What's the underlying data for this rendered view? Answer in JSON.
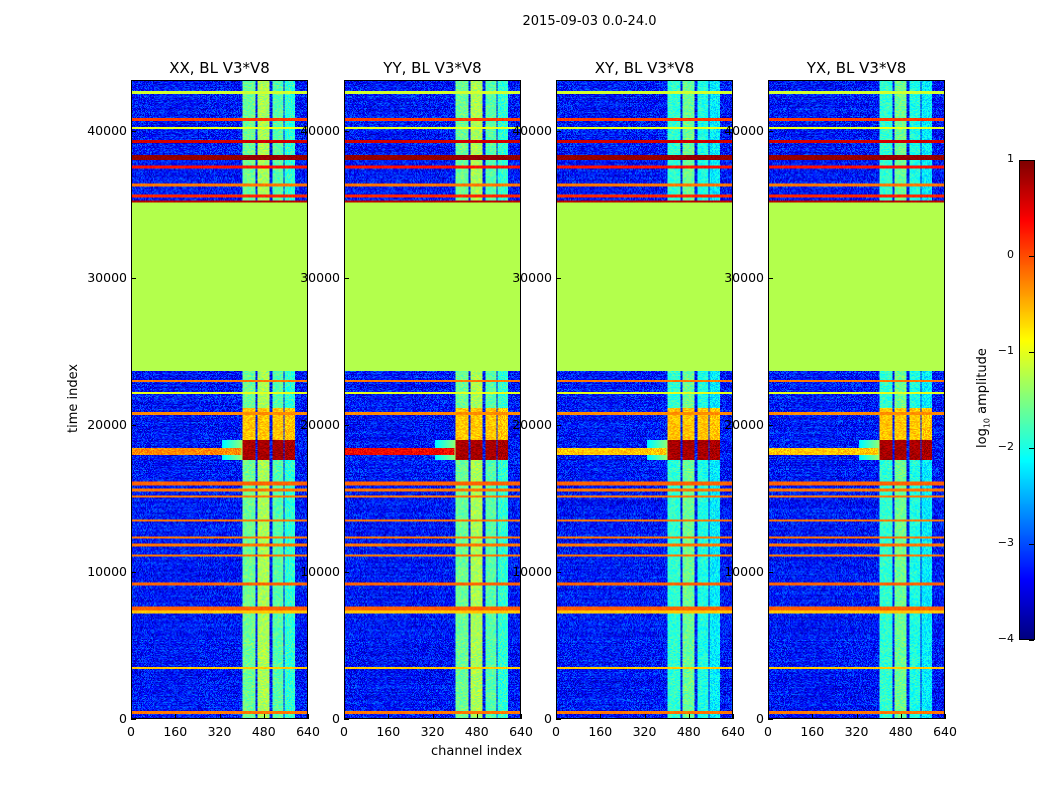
{
  "chart_data": {
    "type": "heatmap",
    "title": "2015-09-03 0.0-24.0",
    "xlabel": "channel index",
    "ylabel": "time index",
    "xlim": [
      0,
      640
    ],
    "ylim": [
      0,
      43500
    ],
    "xticks": [
      "0",
      "160",
      "320",
      "480",
      "640"
    ],
    "yticks": [
      "0",
      "10000",
      "20000",
      "30000",
      "40000"
    ],
    "colormap": "jet",
    "colorbar": {
      "label_prefix": "log",
      "label_sub": "10",
      "label_suffix": " amplitude",
      "vmin": -4,
      "vmax": 1,
      "ticks": [
        "1",
        "0",
        "−1",
        "−2",
        "−3",
        "−4"
      ]
    },
    "background_level": -3.3,
    "flagged_block": {
      "t_start": 23700,
      "t_end": 35200,
      "level": -1.25
    },
    "channel_bands": [
      [
        405,
        452,
        -1.6
      ],
      [
        459,
        503,
        -1.3
      ],
      [
        513,
        553,
        -1.7
      ],
      [
        557,
        597,
        -1.9
      ]
    ],
    "rfi_rows": [
      {
        "t": 42700,
        "w": 150,
        "level": -1.1
      },
      {
        "t": 40850,
        "w": 120,
        "level": 0.1
      },
      {
        "t": 40300,
        "w": 80,
        "level": -1.0
      },
      {
        "t": 39400,
        "w": 150,
        "level": 0.6
      },
      {
        "t": 38300,
        "w": 300,
        "level": 0.9
      },
      {
        "t": 37600,
        "w": 100,
        "level": 0.3
      },
      {
        "t": 36400,
        "w": 90,
        "level": -0.2
      },
      {
        "t": 35650,
        "w": 140,
        "level": 0.2
      },
      {
        "t": 35250,
        "w": 90,
        "level": 0.7
      },
      {
        "t": 23000,
        "w": 100,
        "level": -0.2
      },
      {
        "t": 22200,
        "w": 80,
        "level": -1.0
      },
      {
        "t": 20800,
        "w": 70,
        "level": -0.3
      },
      {
        "t": 16000,
        "w": 150,
        "level": -0.1
      },
      {
        "t": 15550,
        "w": 90,
        "level": -0.2
      },
      {
        "t": 15100,
        "w": 90,
        "level": -0.2
      },
      {
        "t": 13500,
        "w": 80,
        "level": -0.2
      },
      {
        "t": 12300,
        "w": 80,
        "level": -0.2
      },
      {
        "t": 11800,
        "w": 80,
        "level": -0.2
      },
      {
        "t": 11100,
        "w": 80,
        "level": -0.2
      },
      {
        "t": 9150,
        "w": 160,
        "level": -0.1
      },
      {
        "t": 7500,
        "w": 150,
        "level": -0.1
      },
      {
        "t": 7250,
        "w": 80,
        "level": -0.6
      },
      {
        "t": 3400,
        "w": 80,
        "level": -0.6
      },
      {
        "t": 350,
        "w": 120,
        "level": -0.2
      }
    ],
    "hot_region": {
      "t_start": 17600,
      "t_end": 19000,
      "level": 0.8
    },
    "panels": [
      {
        "title": "XX, BL V3*V8",
        "strong_row_level": -0.3
      },
      {
        "title": "YY, BL V3*V8",
        "strong_row_level": 0.4
      },
      {
        "title": "XY, BL V3*V8",
        "strong_row_level": -0.6
      },
      {
        "title": "YX, BL V3*V8",
        "strong_row_level": -0.6
      }
    ]
  }
}
